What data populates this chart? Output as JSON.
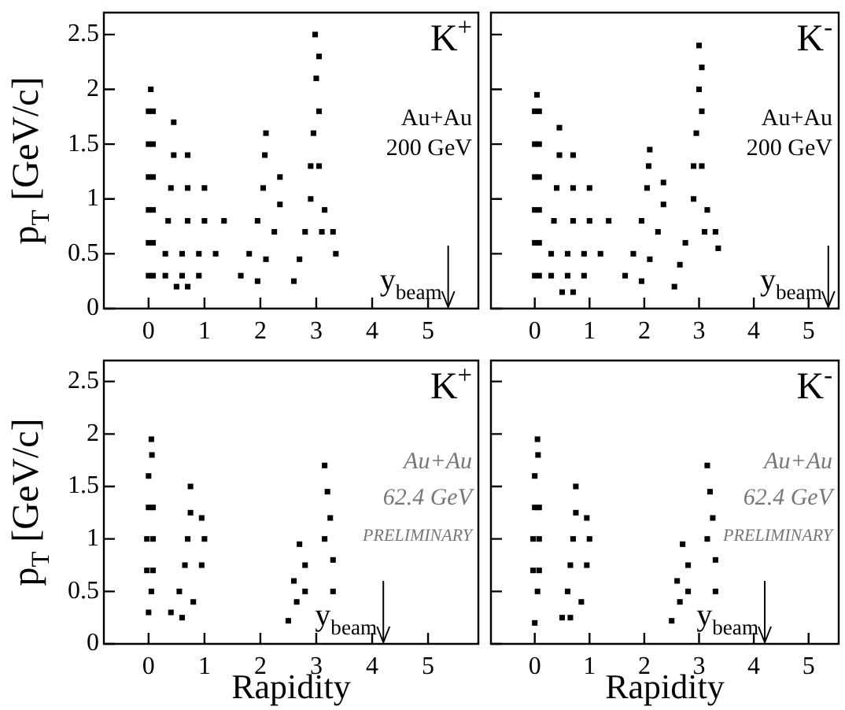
{
  "chart_data": [
    {
      "type": "scatter",
      "ylabel": "p$_{T}$ [GeV/c]",
      "xlim": [
        -0.8,
        5.9
      ],
      "ylim": [
        0,
        2.7
      ],
      "xticks": [
        0,
        1,
        2,
        3,
        4,
        5
      ],
      "yticks": [
        0,
        0.5,
        1,
        1.5,
        2,
        2.5
      ],
      "marker": "square",
      "color": "#000000",
      "x": [
        0,
        0.08,
        0,
        0.08,
        0,
        0.08,
        0,
        0.08,
        0,
        0.08,
        0,
        0.08,
        0.04,
        0.5,
        0.7,
        0.3,
        0.6,
        0.9,
        0.3,
        0.6,
        0.9,
        1.2,
        0.35,
        0.7,
        1.0,
        1.35,
        0.4,
        0.7,
        1.0,
        0.45,
        0.7,
        0.45,
        1.65,
        1.8,
        1.95,
        2.05,
        2.08,
        2.1,
        1.95,
        2.1,
        2.25,
        2.35,
        2.35,
        2.6,
        2.7,
        2.8,
        3.35,
        3.3,
        3.1,
        2.9,
        3.15,
        2.9,
        3.05,
        2.95,
        3.05,
        3.0,
        3.05,
        2.98
      ],
      "values": [
        0.3,
        0.3,
        0.6,
        0.6,
        0.9,
        0.9,
        1.2,
        1.2,
        1.5,
        1.5,
        1.8,
        1.8,
        2.0,
        0.2,
        0.2,
        0.3,
        0.3,
        0.3,
        0.5,
        0.5,
        0.5,
        0.5,
        0.8,
        0.8,
        0.8,
        0.8,
        1.1,
        1.1,
        1.1,
        1.4,
        1.4,
        1.7,
        0.3,
        0.5,
        0.8,
        1.1,
        1.4,
        1.6,
        0.25,
        0.45,
        0.7,
        0.95,
        1.2,
        0.25,
        0.45,
        0.7,
        0.5,
        0.7,
        0.7,
        1.0,
        0.9,
        1.3,
        1.3,
        1.6,
        1.8,
        2.1,
        2.3,
        2.5
      ],
      "annotations": [
        "K$^{+}$",
        "Au+Au",
        "200 GeV"
      ],
      "ref_lines": [
        {
          "axis": "x",
          "value": 5.36,
          "label": "y$_{beam}$"
        }
      ]
    },
    {
      "type": "scatter",
      "tick_labels": "x",
      "xlim": [
        -0.8,
        5.55
      ],
      "ylim": [
        0,
        2.7
      ],
      "xticks": [
        0,
        1,
        2,
        3,
        4,
        5
      ],
      "yticks": [
        0,
        0.5,
        1,
        1.5,
        2,
        2.5
      ],
      "marker": "square",
      "color": "#000000",
      "x": [
        0,
        0.08,
        0,
        0.08,
        0,
        0.08,
        0,
        0.08,
        0,
        0.08,
        0,
        0.08,
        0.04,
        0.5,
        0.7,
        0.3,
        0.6,
        0.9,
        0.3,
        0.6,
        0.9,
        1.2,
        0.35,
        0.7,
        1.0,
        1.35,
        0.4,
        0.7,
        1.0,
        0.45,
        0.7,
        0.45,
        1.65,
        1.8,
        1.95,
        2.05,
        2.08,
        2.1,
        1.95,
        2.1,
        2.25,
        2.35,
        2.35,
        2.55,
        2.65,
        2.75,
        3.35,
        3.3,
        3.1,
        2.9,
        3.15,
        2.9,
        3.05,
        2.95,
        3.05,
        3.0,
        3.05,
        3.0
      ],
      "values": [
        0.3,
        0.3,
        0.6,
        0.6,
        0.9,
        0.9,
        1.2,
        1.2,
        1.5,
        1.5,
        1.8,
        1.8,
        1.95,
        0.15,
        0.15,
        0.3,
        0.3,
        0.3,
        0.5,
        0.5,
        0.5,
        0.5,
        0.8,
        0.8,
        0.8,
        0.8,
        1.1,
        1.1,
        1.1,
        1.4,
        1.4,
        1.65,
        0.3,
        0.5,
        0.8,
        1.1,
        1.3,
        1.45,
        0.25,
        0.45,
        0.7,
        0.95,
        1.15,
        0.2,
        0.4,
        0.6,
        0.55,
        0.7,
        0.7,
        1.0,
        0.9,
        1.3,
        1.3,
        1.6,
        1.8,
        2.0,
        2.2,
        2.4
      ],
      "annotations": [
        "K$^{-}$",
        "Au+Au",
        "200 GeV"
      ],
      "ref_lines": [
        {
          "axis": "x",
          "value": 5.36,
          "label": "y$_{beam}$"
        }
      ]
    },
    {
      "type": "scatter",
      "xlabel": "Rapidity",
      "ylabel": "p$_{T}$ [GeV/c]",
      "xlim": [
        -0.8,
        5.9
      ],
      "ylim": [
        0,
        2.7
      ],
      "xticks": [
        0,
        1,
        2,
        3,
        4,
        5
      ],
      "yticks": [
        0,
        0.5,
        1,
        1.5,
        2,
        2.5
      ],
      "marker": "square",
      "color": "#000000",
      "x": [
        0,
        0.05,
        -0.03,
        0.08,
        -0.03,
        0.08,
        0,
        0.08,
        0,
        0.06,
        0.05,
        0.4,
        0.6,
        0.55,
        0.8,
        0.65,
        0.95,
        0.7,
        1.0,
        0.75,
        0.95,
        0.75,
        2.5,
        2.65,
        2.8,
        2.6,
        2.8,
        2.7,
        3.3,
        3.3,
        3.15,
        3.25,
        3.2,
        3.15
      ],
      "values": [
        0.3,
        0.5,
        0.7,
        0.7,
        1.0,
        1.0,
        1.3,
        1.3,
        1.6,
        1.8,
        1.95,
        0.3,
        0.25,
        0.5,
        0.4,
        0.75,
        0.75,
        1.0,
        1.0,
        1.25,
        1.2,
        1.5,
        0.22,
        0.4,
        0.5,
        0.6,
        0.75,
        0.95,
        0.5,
        0.8,
        1.0,
        1.2,
        1.45,
        1.7
      ],
      "annotations": [
        "K$^{+}$",
        "Au+Au",
        "62.4 GeV",
        "PRELIMINARY"
      ],
      "ref_lines": [
        {
          "axis": "x",
          "value": 4.2,
          "label": "y$_{beam}$"
        }
      ]
    },
    {
      "type": "scatter",
      "xlabel": "Rapidity",
      "tick_labels": "x",
      "xlim": [
        -0.8,
        5.55
      ],
      "ylim": [
        0,
        2.7
      ],
      "xticks": [
        0,
        1,
        2,
        3,
        4,
        5
      ],
      "yticks": [
        0,
        0.5,
        1,
        1.5,
        2,
        2.5
      ],
      "marker": "square",
      "color": "#000000",
      "x": [
        0,
        0.05,
        -0.03,
        0.08,
        -0.03,
        0.08,
        0,
        0.08,
        0,
        0.06,
        0.05,
        0.5,
        0.65,
        0.6,
        0.85,
        0.65,
        0.95,
        0.7,
        1.0,
        0.75,
        0.95,
        0.75,
        2.5,
        2.65,
        2.8,
        2.6,
        2.8,
        2.7,
        3.3,
        3.3,
        3.15,
        3.25,
        3.2,
        3.15
      ],
      "values": [
        0.2,
        0.5,
        0.7,
        0.7,
        1.0,
        1.0,
        1.3,
        1.3,
        1.6,
        1.8,
        1.95,
        0.25,
        0.25,
        0.5,
        0.4,
        0.75,
        0.75,
        1.0,
        1.0,
        1.25,
        1.2,
        1.5,
        0.22,
        0.4,
        0.5,
        0.6,
        0.75,
        0.95,
        0.5,
        0.8,
        1.0,
        1.2,
        1.45,
        1.7
      ],
      "annotations": [
        "K$^{-}$",
        "Au+Au",
        "62.4 GeV",
        "PRELIMINARY"
      ],
      "ref_lines": [
        {
          "axis": "x",
          "value": 4.2,
          "label": "y$_{beam}$"
        }
      ]
    }
  ]
}
